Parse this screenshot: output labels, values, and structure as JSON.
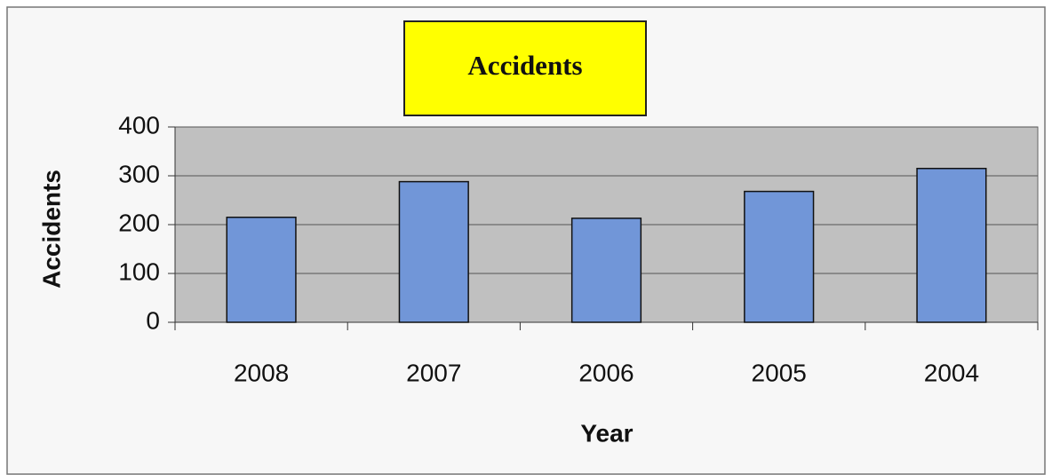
{
  "chart_data": {
    "type": "bar",
    "title": "Accidents",
    "x_label": "Year",
    "y_label": "Accidents",
    "categories": [
      "2008",
      "2007",
      "2006",
      "2005",
      "2004"
    ],
    "values": [
      215,
      288,
      213,
      268,
      315
    ],
    "color": "#7196d8",
    "ylim": [
      0,
      400
    ],
    "yticks": [
      0,
      100,
      200,
      300,
      400
    ],
    "grid": true
  }
}
